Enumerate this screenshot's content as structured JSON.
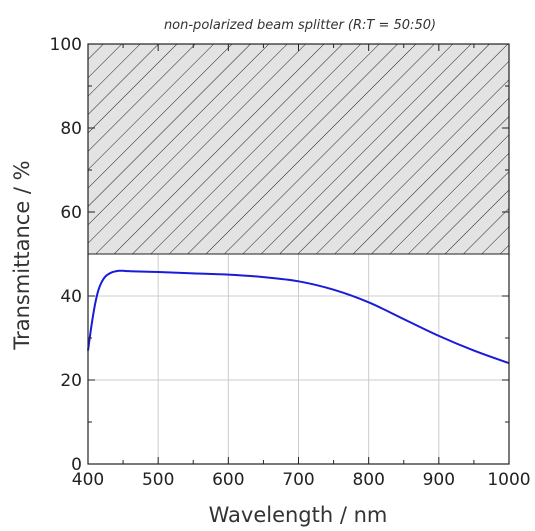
{
  "chart_data": {
    "type": "line",
    "title": "non-polarized beam splitter  (R:T = 50:50)",
    "xlabel": "Wavelength / nm",
    "ylabel": "Transmittance / %",
    "xlim": [
      400,
      1000
    ],
    "ylim": [
      0,
      100
    ],
    "xticks": [
      400,
      500,
      600,
      700,
      800,
      900,
      1000
    ],
    "yticks": [
      0,
      20,
      40,
      60,
      80,
      100
    ],
    "grid": true,
    "hatched_region": {
      "y_from": 50,
      "y_to": 100
    },
    "series": [
      {
        "color": "#1a1adb",
        "x": [
          400,
          405,
          410,
          415,
          420,
          425,
          430,
          435,
          440,
          445,
          450,
          460,
          480,
          500,
          550,
          600,
          650,
          700,
          750,
          800,
          850,
          900,
          950,
          1000
        ],
        "y": [
          27,
          33,
          38,
          41.5,
          43.5,
          44.7,
          45.3,
          45.7,
          45.9,
          46.0,
          46.0,
          45.9,
          45.8,
          45.7,
          45.4,
          45.1,
          44.5,
          43.5,
          41.5,
          38.5,
          34.5,
          30.5,
          27.0,
          24.0
        ]
      }
    ]
  }
}
